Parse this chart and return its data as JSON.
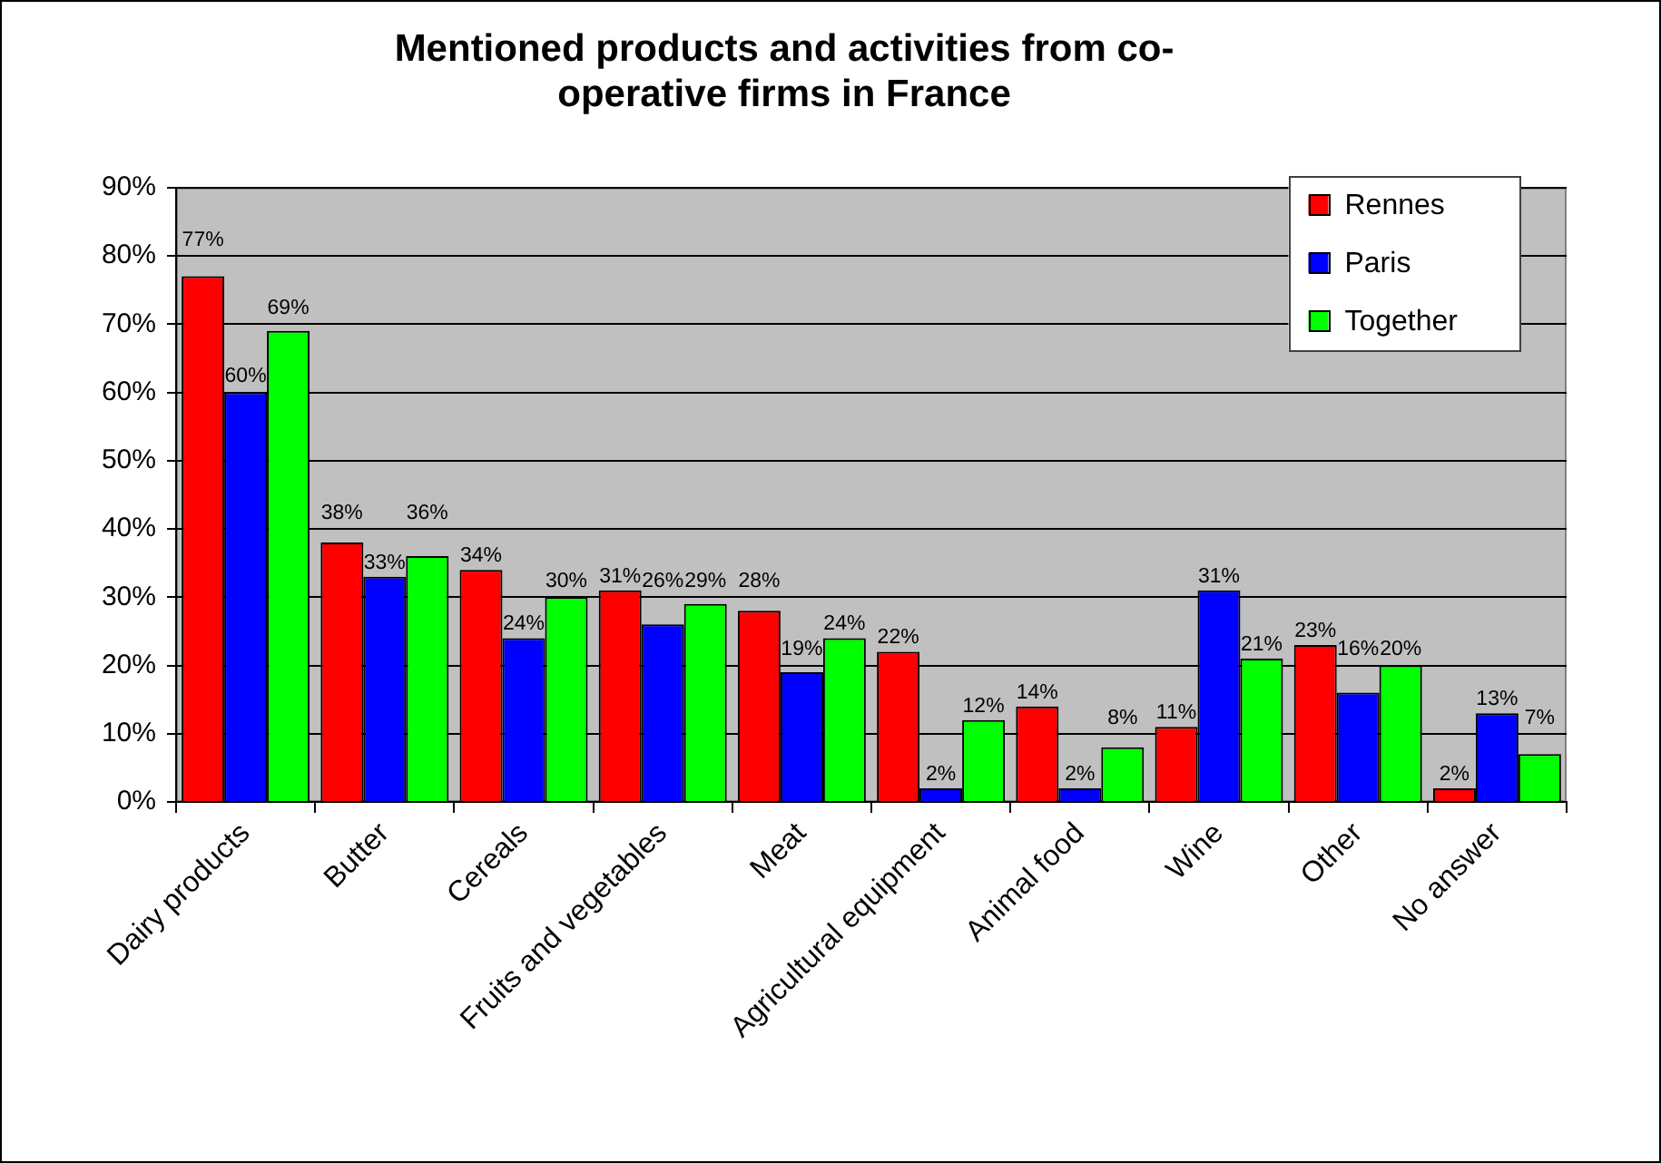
{
  "chart_data": {
    "type": "bar",
    "title": "Mentioned products and activities from co-operative firms in France",
    "categories": [
      "Dairy products",
      "Butter",
      "Cereals",
      "Fruits and vegetables",
      "Meat",
      "Agricultural equipment",
      "Animal food",
      "Wine",
      "Other",
      "No answer"
    ],
    "series": [
      {
        "name": "Rennes",
        "color": "#ff0000",
        "values": [
          77,
          38,
          34,
          31,
          28,
          22,
          14,
          11,
          23,
          2
        ],
        "value_labels": [
          "77%",
          "38%",
          "34%",
          "31%",
          "28%",
          "22%",
          "14%",
          "11%",
          "23%",
          "2%"
        ]
      },
      {
        "name": "Paris",
        "color": "#0000ff",
        "values": [
          60,
          33,
          24,
          26,
          19,
          2,
          2,
          31,
          16,
          13
        ],
        "value_labels": [
          "60%",
          "33%",
          "24%",
          "26%",
          "19%",
          "2%",
          "2%",
          "31%",
          "16%",
          "13%"
        ]
      },
      {
        "name": "Together",
        "color": "#00ff00",
        "values": [
          69,
          36,
          30,
          29,
          24,
          12,
          8,
          21,
          20,
          7
        ],
        "value_labels": [
          "69%",
          "36%",
          "30%",
          "29%",
          "24%",
          "12%",
          "8%",
          "21%",
          "20%",
          "7%"
        ]
      }
    ],
    "ylim": [
      0,
      90
    ],
    "yticks": [
      {
        "value": 0,
        "label": "0%"
      },
      {
        "value": 10,
        "label": "10%"
      },
      {
        "value": 20,
        "label": "20%"
      },
      {
        "value": 30,
        "label": "30%"
      },
      {
        "value": 40,
        "label": "40%"
      },
      {
        "value": 50,
        "label": "50%"
      },
      {
        "value": 60,
        "label": "60%"
      },
      {
        "value": 70,
        "label": "70%"
      },
      {
        "value": 80,
        "label": "80%"
      },
      {
        "value": 90,
        "label": "90%"
      }
    ],
    "grid": "y",
    "legend": "top right"
  }
}
